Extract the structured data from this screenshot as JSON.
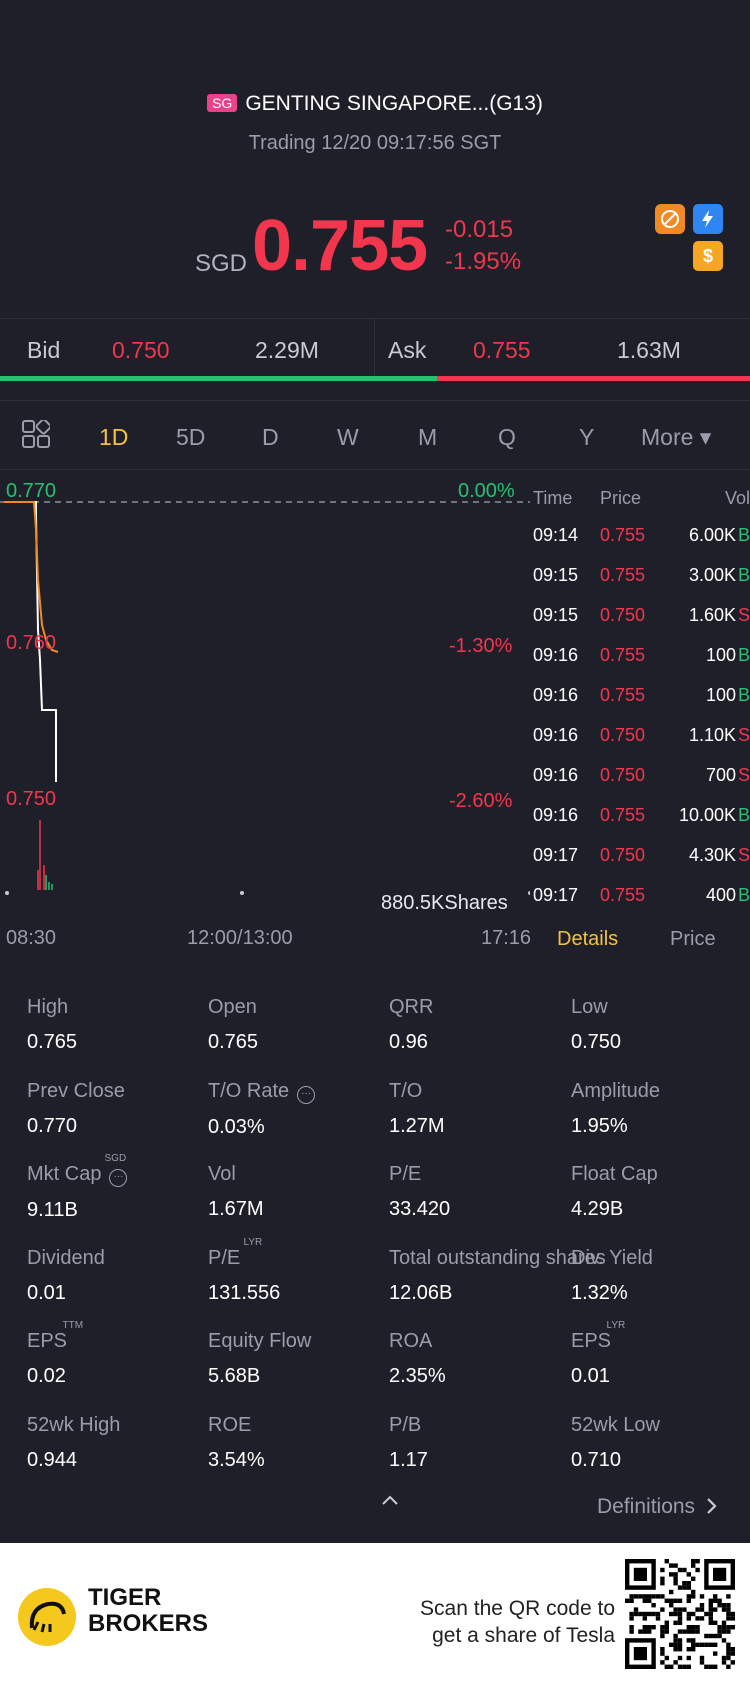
{
  "header": {
    "market_badge": "SG",
    "title": "GENTING SINGAPORE...(G13)",
    "status": "Trading 12/20 09:17:56 SGT"
  },
  "quote": {
    "currency": "SGD",
    "price": "0.755",
    "change": "-0.015",
    "change_pct": "-1.95%"
  },
  "bidask": {
    "bid_label": "Bid",
    "bid_price": "0.750",
    "bid_size": "2.29M",
    "ask_label": "Ask",
    "ask_price": "0.755",
    "ask_size": "1.63M",
    "bid_ratio": 0.583
  },
  "tabs": [
    "1D",
    "5D",
    "D",
    "W",
    "M",
    "Q",
    "Y",
    "More ▾"
  ],
  "active_tab": "1D",
  "chart": {
    "price_top": "0.770",
    "price_mid": "0.760",
    "price_low": "0.750",
    "pct_top": "0.00%",
    "pct_mid": "-1.30%",
    "pct_low": "-2.60%",
    "volume_label": "880.5KShares",
    "time_start": "08:30",
    "time_mid": "12:00/13:00",
    "time_end": "17:16"
  },
  "trades": {
    "headers": {
      "time": "Time",
      "price": "Price",
      "vol": "Vol"
    },
    "rows": [
      {
        "time": "09:14",
        "price": "0.755",
        "vol": "6.00K",
        "side": "B"
      },
      {
        "time": "09:15",
        "price": "0.755",
        "vol": "3.00K",
        "side": "B"
      },
      {
        "time": "09:15",
        "price": "0.750",
        "vol": "1.60K",
        "side": "S"
      },
      {
        "time": "09:16",
        "price": "0.755",
        "vol": "100",
        "side": "B"
      },
      {
        "time": "09:16",
        "price": "0.755",
        "vol": "100",
        "side": "B"
      },
      {
        "time": "09:16",
        "price": "0.750",
        "vol": "1.10K",
        "side": "S"
      },
      {
        "time": "09:16",
        "price": "0.750",
        "vol": "700",
        "side": "S"
      },
      {
        "time": "09:16",
        "price": "0.755",
        "vol": "10.00K",
        "side": "B"
      },
      {
        "time": "09:17",
        "price": "0.750",
        "vol": "4.30K",
        "side": "S"
      },
      {
        "time": "09:17",
        "price": "0.755",
        "vol": "400",
        "side": "B"
      }
    ]
  },
  "subtabs": {
    "details": "Details",
    "price": "Price"
  },
  "stats": [
    {
      "k": "High",
      "v": "0.765"
    },
    {
      "k": "Open",
      "v": "0.765"
    },
    {
      "k": "QRR",
      "v": "0.96"
    },
    {
      "k": "Low",
      "v": "0.750"
    },
    {
      "k": "Prev Close",
      "v": "0.770"
    },
    {
      "k": "T/O Rate",
      "v": "0.03%"
    },
    {
      "k": "T/O",
      "v": "1.27M"
    },
    {
      "k": "Amplitude",
      "v": "1.95%"
    },
    {
      "k": "Mkt Cap",
      "v": "9.11B",
      "sup": "SGD"
    },
    {
      "k": "Vol",
      "v": "1.67M"
    },
    {
      "k": "P/E",
      "v": "33.420"
    },
    {
      "k": "Float Cap",
      "v": "4.29B"
    },
    {
      "k": "Dividend",
      "v": "0.01"
    },
    {
      "k": "P/E",
      "v": "131.556",
      "sup": "LYR"
    },
    {
      "k": "Total outstanding shares",
      "v": "12.06B"
    },
    {
      "k": "Div. Yield",
      "v": "1.32%"
    },
    {
      "k": "EPS",
      "v": "0.02",
      "sup": "TTM"
    },
    {
      "k": "Equity Flow",
      "v": "5.68B"
    },
    {
      "k": "ROA",
      "v": "2.35%"
    },
    {
      "k": "EPS",
      "v": "0.01",
      "sup": "LYR"
    },
    {
      "k": "52wk High",
      "v": "0.944"
    },
    {
      "k": "ROE",
      "v": "3.54%"
    },
    {
      "k": "P/B",
      "v": "1.17"
    },
    {
      "k": "52wk Low",
      "v": "0.710"
    }
  ],
  "definitions_label": "Definitions",
  "footer": {
    "brand_line1": "TIGER",
    "brand_line2": "BROKERS",
    "scan_line1": "Scan the QR code to",
    "scan_line2": "get a share of Tesla"
  },
  "colors": {
    "up": "#27c071",
    "down": "#f2364e",
    "accent": "#f5c33b",
    "bg": "#1e1f28"
  },
  "icons": [
    "no-short-icon",
    "flash-icon",
    "dollar-icon",
    "grid-icon",
    "chevron-up-icon",
    "chevron-right-icon",
    "qr-code-icon"
  ]
}
